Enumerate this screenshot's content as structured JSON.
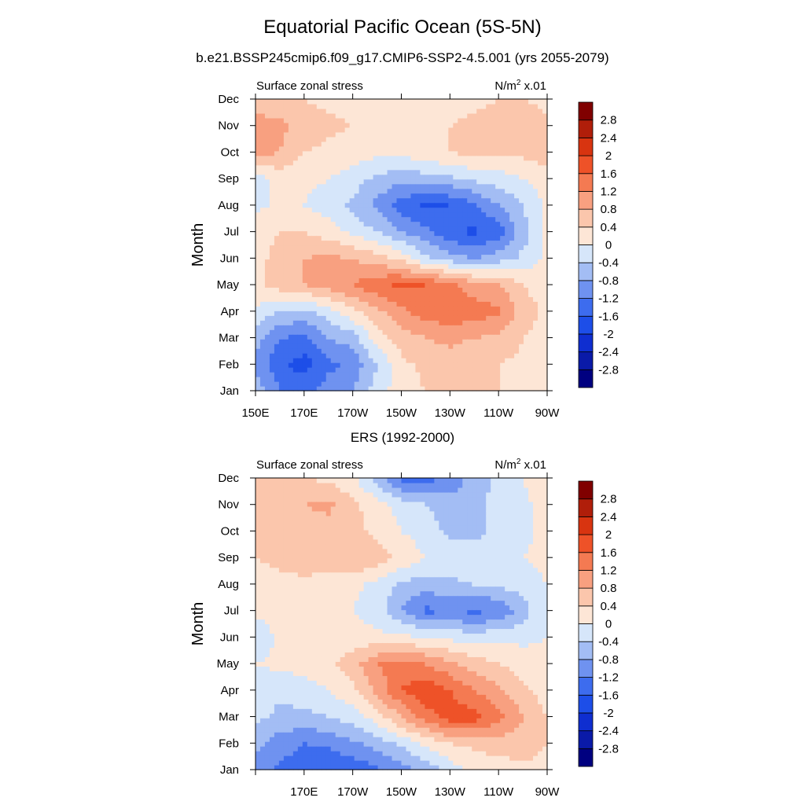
{
  "figure": {
    "title": "Equatorial Pacific Ocean (5S-5N)",
    "subtitle": "b.e21.BSSP245cmip6.f09_g17.CMIP6-SSP2-4.5.001 (yrs 2055-2079)",
    "middle_title": "ERS (1992-2000)"
  },
  "chart_data": [
    {
      "type": "heatmap",
      "panel": "model",
      "left_label": "Surface zonal stress",
      "units_prefix": "N/m",
      "units_sup": "2",
      "units_suffix": " x.01",
      "ylabel": "Month",
      "y_ticks": [
        "Jan",
        "Feb",
        "Mar",
        "Apr",
        "May",
        "Jun",
        "Jul",
        "Aug",
        "Sep",
        "Oct",
        "Nov",
        "Dec"
      ],
      "x_ticks": [
        "150E",
        "170E",
        "170W",
        "150W",
        "130W",
        "110W",
        "90W"
      ],
      "x_range": [
        150,
        270
      ],
      "y_range": [
        1,
        12
      ],
      "levels": [
        -2.8,
        -2.4,
        -2,
        -1.6,
        -1.2,
        -0.8,
        -0.4,
        0,
        0.4,
        0.8,
        1.2,
        1.6,
        2,
        2.4,
        2.8
      ],
      "level_labels": [
        "-2.8",
        "-2.4",
        "-2",
        "-1.6",
        "-1.2",
        "-0.8",
        "-0.4",
        "0",
        "0.4",
        "0.8",
        "1.2",
        "1.6",
        "2",
        "2.4",
        "2.8"
      ],
      "colors": [
        "#000080",
        "#0a1aa8",
        "#0f2ed0",
        "#1d4ee8",
        "#3d6cee",
        "#6f92f0",
        "#a3bdf4",
        "#d6e6fa",
        "#fde6d6",
        "#fbc6ac",
        "#f8a080",
        "#f47a52",
        "#ee5228",
        "#d83410",
        "#b01e0a",
        "#800000"
      ],
      "x": [
        150,
        160,
        170,
        180,
        190,
        200,
        210,
        220,
        230,
        240,
        250,
        260,
        270
      ],
      "months": [
        1,
        2,
        3,
        4,
        5,
        6,
        7,
        8,
        9,
        10,
        11,
        12
      ],
      "z": [
        [
          -0.5,
          -1.2,
          -1.3,
          -1.0,
          -0.8,
          -0.2,
          0.2,
          0.4,
          0.6,
          0.6,
          0.4,
          0.2,
          0.1
        ],
        [
          -0.9,
          -1.5,
          -1.8,
          -1.3,
          -1.1,
          -0.4,
          0.3,
          0.5,
          0.6,
          0.5,
          0.4,
          0.3,
          0.2
        ],
        [
          -0.6,
          -1.2,
          -1.3,
          -0.8,
          -0.6,
          0.2,
          0.6,
          0.8,
          0.9,
          0.8,
          0.7,
          0.4,
          0.2
        ],
        [
          -0.1,
          -0.4,
          -0.5,
          -0.2,
          0.3,
          0.7,
          1.1,
          1.4,
          1.5,
          1.4,
          1.3,
          0.6,
          0.3
        ],
        [
          0.3,
          0.6,
          0.8,
          1.0,
          1.2,
          1.5,
          1.7,
          1.6,
          1.3,
          1.0,
          0.8,
          0.4,
          0.2
        ],
        [
          0.3,
          0.5,
          0.8,
          0.9,
          0.8,
          0.6,
          0.3,
          -0.3,
          -0.6,
          -0.8,
          -0.6,
          -0.3,
          0.1
        ],
        [
          0.3,
          0.4,
          0.4,
          0.2,
          -0.1,
          -0.4,
          -0.8,
          -1.1,
          -1.5,
          -1.7,
          -1.4,
          -0.6,
          0.1
        ],
        [
          -0.1,
          0.1,
          0.0,
          -0.2,
          -0.5,
          -0.9,
          -1.4,
          -1.7,
          -1.6,
          -1.3,
          -0.8,
          -0.4,
          0.1
        ],
        [
          -0.2,
          0.2,
          0.1,
          0.0,
          -0.2,
          -0.5,
          -0.7,
          -0.6,
          -0.5,
          -0.3,
          -0.2,
          0.0,
          0.2
        ],
        [
          0.9,
          0.8,
          0.4,
          0.3,
          0.2,
          0.1,
          0.1,
          0.3,
          0.4,
          0.5,
          0.5,
          0.5,
          0.6
        ],
        [
          1.0,
          0.9,
          0.6,
          0.5,
          0.4,
          0.3,
          0.2,
          0.3,
          0.4,
          0.5,
          0.6,
          0.6,
          0.5
        ],
        [
          0.5,
          0.6,
          0.4,
          0.3,
          0.2,
          0.1,
          0.0,
          0.1,
          0.2,
          0.3,
          0.4,
          0.4,
          0.3
        ]
      ]
    },
    {
      "type": "heatmap",
      "panel": "obs",
      "left_label": "Surface zonal stress",
      "units_prefix": "N/m",
      "units_sup": "2",
      "units_suffix": " x.01",
      "ylabel": "Month",
      "y_ticks": [
        "Jan",
        "Feb",
        "Mar",
        "Apr",
        "May",
        "Jun",
        "Jul",
        "Aug",
        "Sep",
        "Oct",
        "Nov",
        "Dec"
      ],
      "x_ticks": [
        "170E",
        "170W",
        "150W",
        "130W",
        "110W",
        "90W"
      ],
      "x_range": [
        150,
        270
      ],
      "y_range": [
        1,
        12
      ],
      "levels": [
        -2.8,
        -2.4,
        -2,
        -1.6,
        -1.2,
        -0.8,
        -0.4,
        0,
        0.4,
        0.8,
        1.2,
        1.6,
        2,
        2.4,
        2.8
      ],
      "level_labels": [
        "-2.8",
        "-2.4",
        "-2",
        "-1.6",
        "-1.2",
        "-0.8",
        "-0.4",
        "0",
        "0.4",
        "0.8",
        "1.2",
        "1.6",
        "2",
        "2.4",
        "2.8"
      ],
      "colors": [
        "#000080",
        "#0a1aa8",
        "#0f2ed0",
        "#1d4ee8",
        "#3d6cee",
        "#6f92f0",
        "#a3bdf4",
        "#d6e6fa",
        "#fde6d6",
        "#fbc6ac",
        "#f8a080",
        "#f47a52",
        "#ee5228",
        "#d83410",
        "#b01e0a",
        "#800000"
      ],
      "x": [
        150,
        160,
        170,
        180,
        190,
        200,
        210,
        220,
        230,
        240,
        250,
        260,
        270
      ],
      "months": [
        1,
        2,
        3,
        4,
        5,
        6,
        7,
        8,
        9,
        10,
        11,
        12
      ],
      "z": [
        [
          -0.9,
          -1.3,
          -1.4,
          -1.6,
          -1.5,
          -1.3,
          -1.0,
          -0.7,
          -0.2,
          0.1,
          0.2,
          0.3,
          0.3
        ],
        [
          -0.7,
          -1.0,
          -1.2,
          -1.1,
          -0.9,
          -0.6,
          -0.3,
          0.1,
          0.4,
          0.5,
          0.6,
          0.6,
          0.4
        ],
        [
          -0.3,
          -0.5,
          -0.5,
          -0.4,
          -0.2,
          0.2,
          0.8,
          1.4,
          1.8,
          1.8,
          1.3,
          0.8,
          0.4
        ],
        [
          -0.2,
          -0.3,
          -0.2,
          0.0,
          0.3,
          0.9,
          1.6,
          1.9,
          1.6,
          1.2,
          0.9,
          0.5,
          0.2
        ],
        [
          0.0,
          0.1,
          0.2,
          0.3,
          0.6,
          1.2,
          1.4,
          1.2,
          0.9,
          0.6,
          0.4,
          0.2,
          0.1
        ],
        [
          -0.4,
          0.1,
          0.3,
          0.3,
          0.2,
          0.1,
          0.1,
          0.0,
          -0.1,
          -0.2,
          -0.1,
          -0.1,
          0.0
        ],
        [
          0.1,
          0.3,
          0.3,
          0.2,
          0.0,
          -0.2,
          -0.8,
          -1.3,
          -1.2,
          -1.3,
          -1.2,
          -0.6,
          0.0
        ],
        [
          0.2,
          0.3,
          0.3,
          0.2,
          0.1,
          -0.1,
          -0.5,
          -0.6,
          -0.5,
          -0.4,
          -0.3,
          -0.2,
          0.0
        ],
        [
          0.4,
          0.5,
          0.6,
          0.7,
          0.8,
          0.6,
          0.3,
          0.0,
          -0.1,
          -0.2,
          -0.1,
          0.0,
          0.1
        ],
        [
          0.5,
          0.6,
          0.6,
          0.6,
          0.5,
          0.3,
          0.0,
          -0.2,
          -0.5,
          -0.5,
          -0.3,
          -0.1,
          0.1
        ],
        [
          0.5,
          0.6,
          0.8,
          0.9,
          0.5,
          0.2,
          -0.2,
          -0.4,
          -0.6,
          -0.5,
          -0.3,
          -0.1,
          0.2
        ],
        [
          0.6,
          0.5,
          0.4,
          0.3,
          0.1,
          -0.6,
          -1.3,
          -1.4,
          -1.1,
          -0.6,
          -0.3,
          0.0,
          0.3
        ]
      ]
    }
  ]
}
